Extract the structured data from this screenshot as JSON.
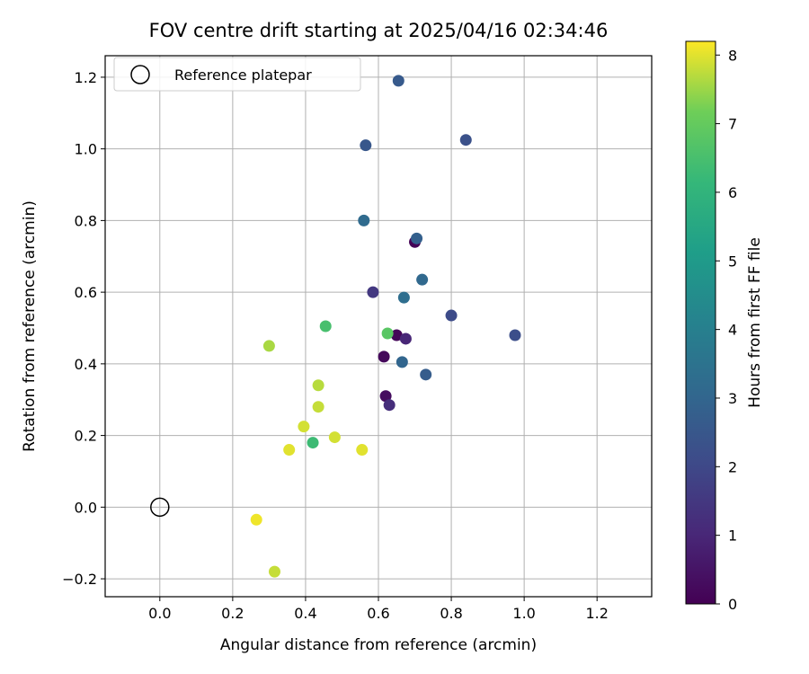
{
  "chart_data": {
    "type": "scatter",
    "title": "FOV centre drift starting at 2025/04/16 02:34:46",
    "xlabel": "Angular distance from reference (arcmin)",
    "ylabel": "Rotation from reference (arcmin)",
    "xlim": [
      -0.15,
      1.35
    ],
    "ylim": [
      -0.25,
      1.26
    ],
    "xticks": [
      "0.0",
      "0.2",
      "0.4",
      "0.6",
      "0.8",
      "1.0",
      "1.2"
    ],
    "yticks": [
      "−0.2",
      "0.0",
      "0.2",
      "0.4",
      "0.6",
      "0.8",
      "1.0",
      "1.2"
    ],
    "grid": true,
    "legend": {
      "placement": "top-left",
      "entries": [
        "Reference platepar"
      ]
    },
    "reference_point": {
      "x": 0.0,
      "y": 0.0
    },
    "colorbar": {
      "label": "Hours from first FF file",
      "colormap": "viridis",
      "range": [
        0,
        8.2
      ],
      "ticks": [
        "0",
        "1",
        "2",
        "3",
        "4",
        "5",
        "6",
        "7",
        "8"
      ]
    },
    "points": [
      {
        "x": 0.7,
        "y": 0.74,
        "t": 0.05
      },
      {
        "x": 0.65,
        "y": 0.48,
        "t": 0.1
      },
      {
        "x": 0.615,
        "y": 0.42,
        "t": 0.2
      },
      {
        "x": 0.62,
        "y": 0.31,
        "t": 0.3
      },
      {
        "x": 0.675,
        "y": 0.47,
        "t": 1.0
      },
      {
        "x": 0.63,
        "y": 0.285,
        "t": 1.2
      },
      {
        "x": 0.585,
        "y": 0.6,
        "t": 1.5
      },
      {
        "x": 0.8,
        "y": 0.535,
        "t": 2.1
      },
      {
        "x": 0.975,
        "y": 0.48,
        "t": 2.2
      },
      {
        "x": 0.84,
        "y": 1.025,
        "t": 2.3
      },
      {
        "x": 0.565,
        "y": 1.01,
        "t": 2.5
      },
      {
        "x": 0.655,
        "y": 1.19,
        "t": 2.6
      },
      {
        "x": 0.73,
        "y": 0.37,
        "t": 2.7
      },
      {
        "x": 0.705,
        "y": 0.75,
        "t": 2.8
      },
      {
        "x": 0.665,
        "y": 0.405,
        "t": 3.0
      },
      {
        "x": 0.72,
        "y": 0.635,
        "t": 3.1
      },
      {
        "x": 0.56,
        "y": 0.8,
        "t": 3.2
      },
      {
        "x": 0.67,
        "y": 0.585,
        "t": 3.3
      },
      {
        "x": 0.42,
        "y": 0.18,
        "t": 6.3
      },
      {
        "x": 0.455,
        "y": 0.505,
        "t": 6.5
      },
      {
        "x": 0.625,
        "y": 0.485,
        "t": 6.8
      },
      {
        "x": 0.3,
        "y": 0.45,
        "t": 7.6
      },
      {
        "x": 0.435,
        "y": 0.34,
        "t": 7.7
      },
      {
        "x": 0.435,
        "y": 0.28,
        "t": 7.8
      },
      {
        "x": 0.395,
        "y": 0.225,
        "t": 7.9
      },
      {
        "x": 0.48,
        "y": 0.195,
        "t": 7.9
      },
      {
        "x": 0.355,
        "y": 0.16,
        "t": 8.0
      },
      {
        "x": 0.555,
        "y": 0.16,
        "t": 8.0
      },
      {
        "x": 0.265,
        "y": -0.035,
        "t": 8.1
      },
      {
        "x": 0.315,
        "y": -0.18,
        "t": 7.8
      }
    ]
  }
}
